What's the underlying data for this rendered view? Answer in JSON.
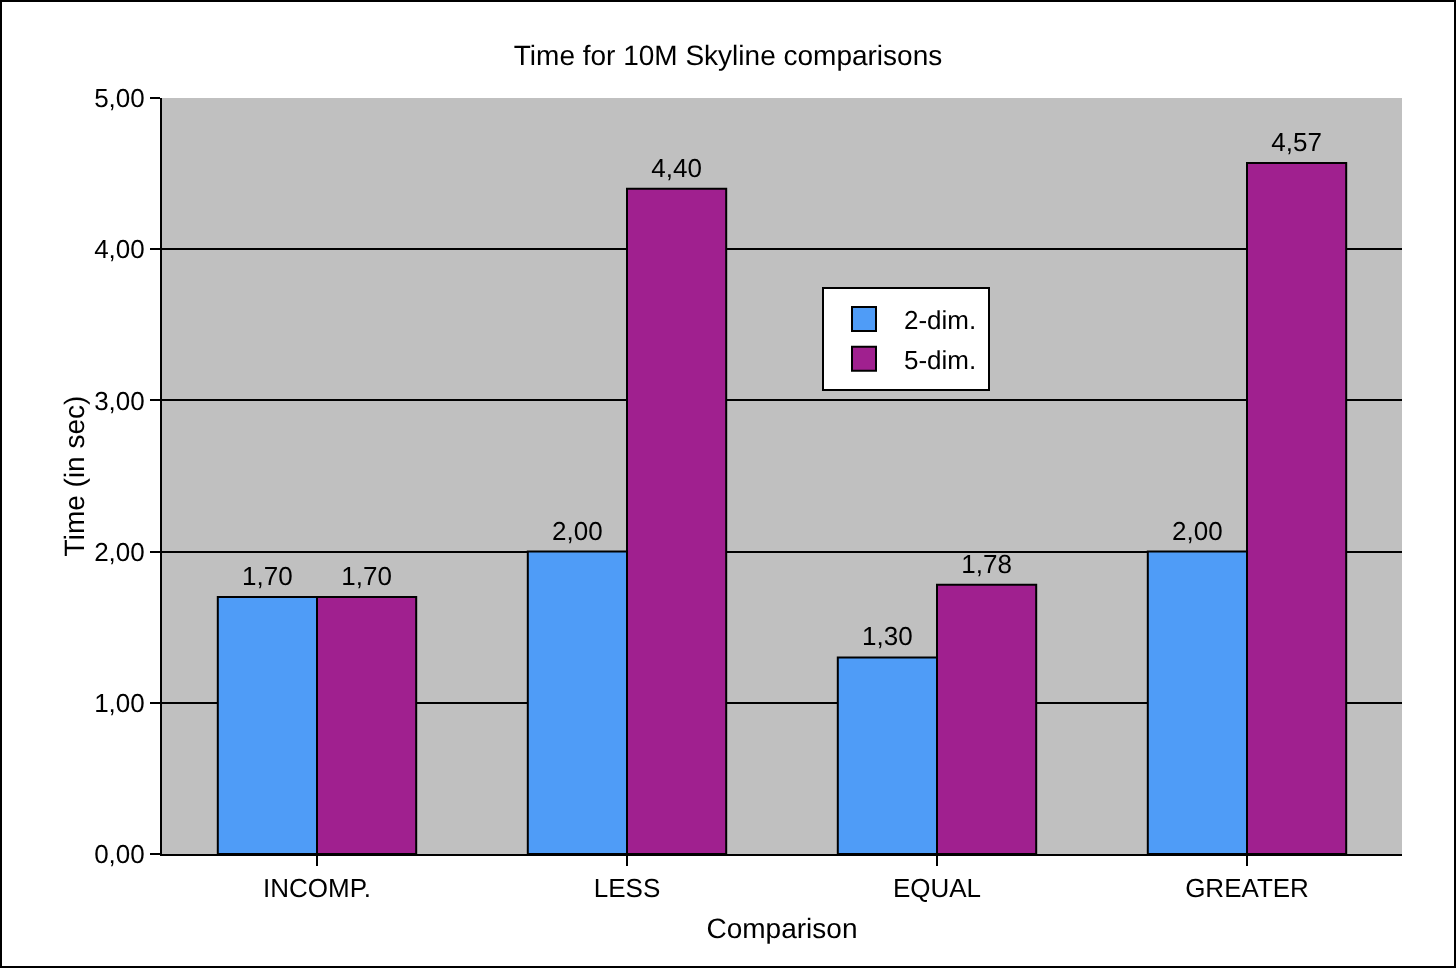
{
  "chart_data": {
    "type": "bar",
    "title": "Time for 10M Skyline comparisons",
    "xlabel": "Comparison",
    "ylabel": "Time (in sec)",
    "categories": [
      "INCOMP.",
      "LESS",
      "EQUAL",
      "GREATER"
    ],
    "series": [
      {
        "name": "2-dim.",
        "color": "#4f9cf7",
        "values": [
          1.7,
          2.0,
          1.3,
          2.0
        ],
        "value_labels": [
          "1,70",
          "2,00",
          "1,30",
          "2,00"
        ]
      },
      {
        "name": "5-dim.",
        "color": "#a0208f",
        "values": [
          1.7,
          4.4,
          1.78,
          4.57
        ],
        "value_labels": [
          "1,70",
          "4,40",
          "1,78",
          "4,57"
        ]
      }
    ],
    "ylim": [
      0,
      5
    ],
    "yticks": [
      {
        "value": 0,
        "label": "0,00"
      },
      {
        "value": 1,
        "label": "1,00"
      },
      {
        "value": 2,
        "label": "2,00"
      },
      {
        "value": 3,
        "label": "3,00"
      },
      {
        "value": 4,
        "label": "4,00"
      },
      {
        "value": 5,
        "label": "5,00"
      }
    ],
    "grid": "y",
    "legend": "top"
  }
}
